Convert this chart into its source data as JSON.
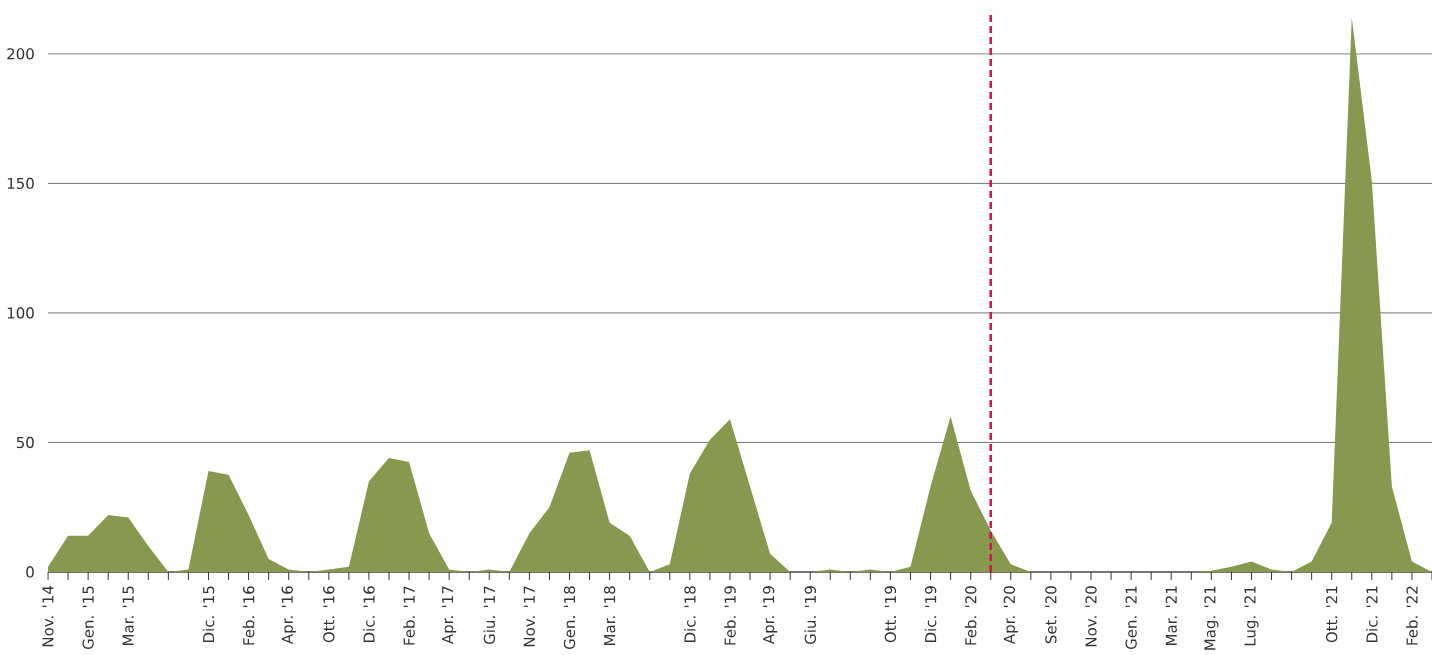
{
  "chart_data": {
    "type": "area",
    "color": "#87994f",
    "categories": [
      "Nov. '14",
      null,
      "Gen. '15",
      null,
      "Mar. '15",
      null,
      null,
      null,
      "Dic. '15",
      null,
      "Feb. '16",
      null,
      "Apr. '16",
      null,
      "Ott. '16",
      null,
      "Dic. '16",
      null,
      "Feb. '17",
      null,
      "Apr. '17",
      null,
      "Giu. '17",
      null,
      "Nov. '17",
      null,
      "Gen. '18",
      null,
      "Mar. '18",
      null,
      null,
      null,
      "Dic. '18",
      null,
      "Feb. '19",
      null,
      "Apr. '19",
      null,
      "Giu. '19",
      null,
      null,
      null,
      "Ott. '19",
      null,
      "Dic. '19",
      null,
      "Feb. '20",
      null,
      "Apr. '20",
      null,
      "Set. '20",
      null,
      "Nov. '20",
      null,
      "Gen. '21",
      null,
      "Mar. '21",
      null,
      "Mag. '21",
      null,
      "Lug. '21",
      null,
      null,
      null,
      "Ott. '21",
      null,
      "Dic. '21",
      null,
      "Feb. '22",
      null
    ],
    "values": [
      2,
      14,
      14,
      22,
      21,
      10,
      0,
      1,
      39,
      37.5,
      22,
      5,
      1,
      0,
      1,
      2,
      35,
      44,
      42.5,
      15,
      1,
      0,
      1,
      0,
      15,
      25,
      46,
      47,
      19,
      14,
      0,
      3,
      38,
      51,
      59,
      33,
      7,
      0,
      0,
      1,
      0,
      1,
      0,
      2,
      33,
      60,
      31.5,
      16,
      3,
      0,
      0,
      0,
      0,
      0,
      0,
      0,
      0,
      0,
      0.5,
      2,
      4,
      1,
      0,
      4,
      19,
      214,
      151,
      33,
      4,
      0
    ],
    "ylim": [
      0,
      215
    ],
    "yticks": [
      0,
      50,
      100,
      150,
      200
    ],
    "grid": "y"
  }
}
